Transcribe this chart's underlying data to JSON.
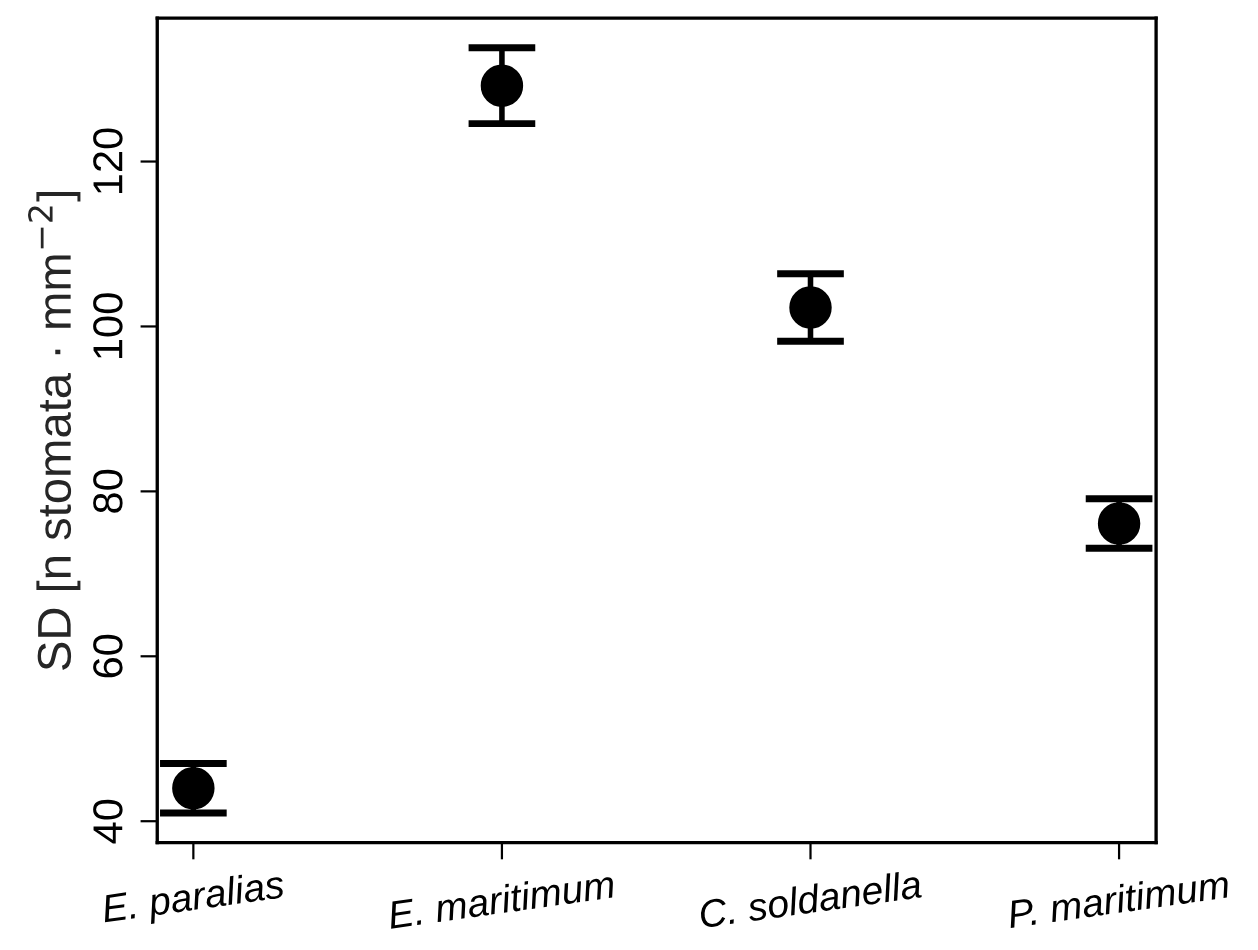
{
  "chart_data": {
    "type": "scatter",
    "categories": [
      "E. paralias",
      "E. maritimum",
      "C. soldanella",
      "P. maritimum"
    ],
    "series": [
      {
        "color": "#000000",
        "values": [
          44,
          129.2,
          102.3,
          76.1
        ],
        "errors": [
          3,
          4.6,
          4.1,
          3
        ]
      }
    ],
    "ylabel": "SD [n stomata · mm$^{−2}$]",
    "ylim": [
      37.4,
      137.4
    ],
    "yticks": [
      40,
      60,
      80,
      100,
      120
    ],
    "marker": "circle",
    "grid": false
  }
}
